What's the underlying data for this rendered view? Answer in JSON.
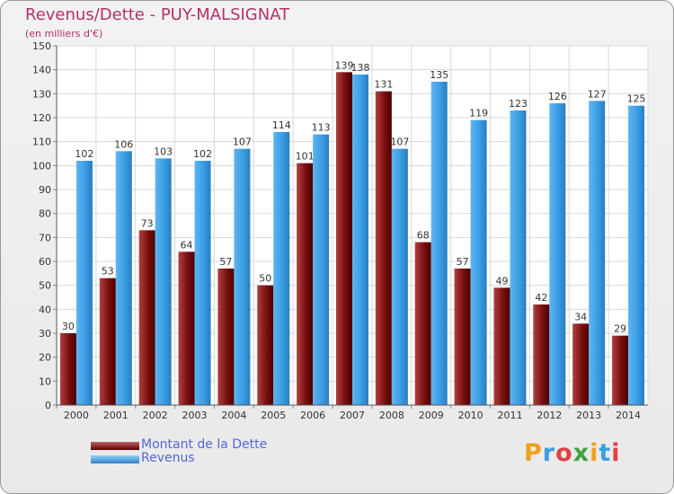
{
  "chart_data": {
    "type": "bar",
    "title": "Revenus/Dette - PUY-MALSIGNAT",
    "subtitle": "(en milliers d'€)",
    "categories": [
      "2000",
      "2001",
      "2002",
      "2003",
      "2004",
      "2005",
      "2006",
      "2007",
      "2008",
      "2009",
      "2010",
      "2011",
      "2012",
      "2013",
      "2014"
    ],
    "series": [
      {
        "name": "Montant de la Dette",
        "color": "#8b1a1a",
        "values": [
          30,
          53,
          73,
          64,
          57,
          50,
          101,
          139,
          131,
          68,
          57,
          49,
          42,
          34,
          29
        ]
      },
      {
        "name": "Revenus",
        "color": "#3a9ee4",
        "values": [
          102,
          106,
          103,
          102,
          107,
          114,
          113,
          138,
          107,
          135,
          119,
          123,
          126,
          127,
          125
        ]
      }
    ],
    "ylim": [
      0,
      150
    ],
    "yticks": [
      0,
      10,
      20,
      30,
      40,
      50,
      60,
      70,
      80,
      90,
      100,
      110,
      120,
      130,
      140,
      150
    ],
    "grid": true,
    "legend": "bottom-left"
  },
  "logo": {
    "text": "Proxiti",
    "colors": [
      "#f0a020",
      "#3a9ee4",
      "#e04040",
      "#40a040",
      "#f0a020",
      "#3a9ee4",
      "#e04040"
    ]
  }
}
